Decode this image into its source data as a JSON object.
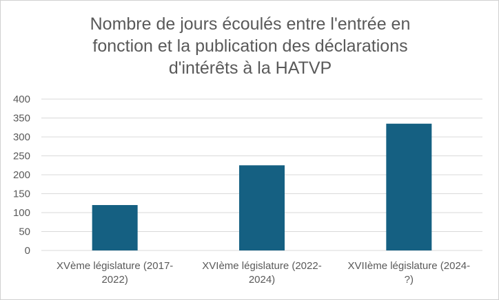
{
  "chart_data": {
    "type": "bar",
    "title_lines": [
      "Nombre de jours écoulés entre l'entrée en",
      "fonction et la publication des déclarations",
      "d'intérêts à la HATVP"
    ],
    "categories": [
      [
        "XVème législature (2017-",
        "2022)"
      ],
      [
        "XVIème législature (2022-",
        "2024)"
      ],
      [
        "XVIIème législature (2024-",
        "?)"
      ]
    ],
    "values": [
      120,
      225,
      335
    ],
    "ylim": [
      0,
      400
    ],
    "yticks": [
      "0",
      "50",
      "100",
      "150",
      "200",
      "250",
      "300",
      "350",
      "400"
    ],
    "grid": true,
    "bar_color": "#156082",
    "grid_color": "#d9d9d9"
  }
}
